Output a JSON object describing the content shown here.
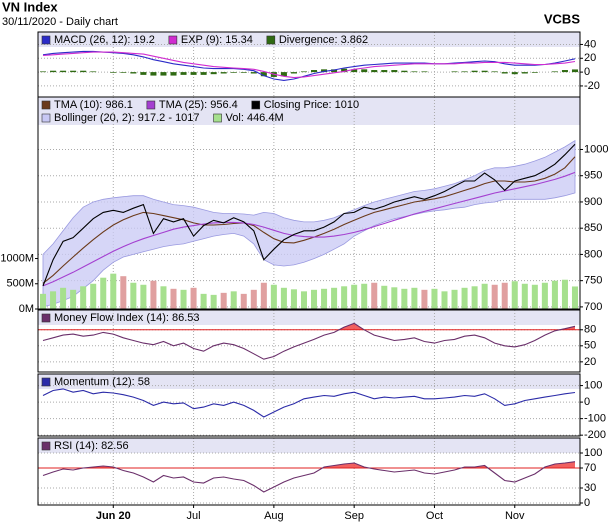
{
  "header": {
    "title": "VN Index",
    "subtitle": "30/11/2020 - Daily chart",
    "source": "VCBS"
  },
  "chart_data": [
    {
      "type": "line",
      "ylim": [
        -36,
        58
      ],
      "yticks": [
        40,
        20,
        0,
        -20
      ],
      "grid": true,
      "series": [
        {
          "name": "MACD (26, 12): 19.2",
          "type": "line",
          "color": "#2b2bc8",
          "values": [
            25,
            27,
            28,
            29,
            30,
            30,
            29,
            28,
            27,
            25,
            22,
            18,
            15,
            12,
            10,
            8,
            6,
            5,
            5,
            5,
            4,
            2,
            -5,
            -10,
            -12,
            -10,
            -6,
            -2,
            1,
            3,
            6,
            8,
            10,
            11,
            12,
            13,
            13,
            13,
            13,
            12,
            12,
            13,
            14,
            15,
            16,
            15,
            12,
            10,
            10,
            10,
            11,
            13,
            16,
            19.2
          ]
        },
        {
          "name": "EXP (9): 15.34",
          "type": "line",
          "color": "#d02cd0",
          "values": [
            24,
            25,
            26,
            27,
            28,
            29,
            29,
            29,
            28,
            27,
            26,
            23,
            20,
            17,
            14,
            12,
            10,
            8,
            7,
            6,
            5,
            4,
            1,
            -3,
            -6,
            -8,
            -7,
            -5,
            -3,
            -1,
            1,
            4,
            6,
            8,
            9,
            10,
            11,
            12,
            12,
            12,
            12,
            12,
            13,
            13,
            14,
            14,
            14,
            13,
            12,
            11,
            11,
            12,
            13,
            15.34
          ]
        },
        {
          "name": "Divergence: 3.862",
          "type": "bar",
          "color": "#2f6a12",
          "values": [
            1,
            2,
            2,
            2,
            2,
            1,
            0,
            -1,
            -1,
            -2,
            -4,
            -5,
            -5,
            -5,
            -4,
            -4,
            -4,
            -3,
            -2,
            -1,
            -1,
            -2,
            -6,
            -7,
            -6,
            -2,
            1,
            3,
            4,
            4,
            5,
            4,
            4,
            3,
            3,
            3,
            2,
            1,
            1,
            0,
            0,
            1,
            1,
            2,
            2,
            1,
            -2,
            -3,
            -2,
            -1,
            0,
            1,
            3,
            3.862
          ]
        }
      ]
    },
    {
      "type": "line",
      "ylim": [
        696,
        1100
      ],
      "yticks": [
        1000,
        950,
        900,
        850,
        800,
        750,
        700
      ],
      "grid": true,
      "y2lim": [
        0,
        4200
      ],
      "y2ticks": [
        {
          "value": 1000,
          "label": "1000M"
        },
        {
          "value": 500,
          "label": "500M"
        },
        {
          "value": 0,
          "label": "0M"
        }
      ],
      "series": [
        {
          "name": "TMA (10): 986.1",
          "type": "line",
          "color": "#6b3a1a",
          "values": [
            745,
            760,
            778,
            795,
            812,
            828,
            843,
            856,
            866,
            874,
            880,
            878,
            874,
            870,
            866,
            860,
            856,
            856,
            857,
            859,
            860,
            855,
            842,
            830,
            823,
            822,
            827,
            833,
            840,
            848,
            857,
            865,
            873,
            880,
            885,
            890,
            895,
            900,
            903,
            906,
            910,
            916,
            922,
            928,
            935,
            940,
            940,
            938,
            938,
            940,
            945,
            953,
            965,
            986.1
          ]
        },
        {
          "name": "TMA (25): 956.4",
          "type": "line",
          "color": "#a43fd0",
          "values": [
            740,
            748,
            757,
            766,
            776,
            786,
            796,
            806,
            815,
            823,
            830,
            836,
            842,
            848,
            852,
            855,
            858,
            860,
            861,
            861,
            860,
            857,
            852,
            846,
            840,
            836,
            834,
            833,
            833,
            835,
            838,
            842,
            847,
            853,
            859,
            865,
            871,
            877,
            882,
            887,
            892,
            897,
            902,
            907,
            912,
            917,
            921,
            925,
            929,
            933,
            938,
            943,
            949,
            956.4
          ]
        },
        {
          "name": "Closing Price: 1010",
          "type": "line",
          "color": "#000000",
          "values": [
            740,
            790,
            825,
            832,
            850,
            868,
            880,
            884,
            880,
            888,
            895,
            840,
            868,
            862,
            868,
            835,
            855,
            865,
            860,
            870,
            862,
            845,
            790,
            810,
            828,
            838,
            845,
            845,
            852,
            862,
            878,
            880,
            890,
            886,
            892,
            900,
            905,
            910,
            905,
            912,
            920,
            930,
            940,
            940,
            955,
            942,
            922,
            940,
            945,
            950,
            960,
            972,
            990,
            1010
          ]
        },
        {
          "name": "Bollinger (20, 2): 917.2 - 1017",
          "type": "band",
          "color": "#c8c8f4",
          "lower": [
            700,
            705,
            712,
            720,
            735,
            750,
            770,
            785,
            795,
            800,
            805,
            810,
            815,
            818,
            820,
            825,
            830,
            835,
            838,
            840,
            835,
            820,
            790,
            780,
            778,
            780,
            785,
            792,
            800,
            810,
            820,
            835,
            845,
            855,
            862,
            868,
            872,
            876,
            880,
            883,
            885,
            888,
            890,
            895,
            898,
            900,
            905,
            905,
            905,
            905,
            905,
            908,
            912,
            917.2
          ],
          "upper": [
            800,
            820,
            845,
            870,
            890,
            900,
            905,
            908,
            910,
            912,
            912,
            905,
            900,
            895,
            893,
            890,
            885,
            880,
            878,
            878,
            877,
            875,
            880,
            878,
            870,
            865,
            862,
            862,
            865,
            870,
            878,
            885,
            893,
            900,
            905,
            910,
            915,
            920,
            922,
            925,
            930,
            935,
            942,
            950,
            960,
            965,
            965,
            968,
            972,
            978,
            985,
            995,
            1005,
            1017
          ]
        },
        {
          "name": "Vol: 446.4M",
          "type": "bar",
          "axis": "y2",
          "color": "#a6e08e",
          "down_color": "#e0a0a0",
          "values": [
            300,
            350,
            420,
            380,
            450,
            500,
            620,
            700,
            650,
            520,
            480,
            560,
            450,
            400,
            380,
            420,
            300,
            280,
            320,
            350,
            300,
            380,
            520,
            480,
            420,
            390,
            350,
            380,
            400,
            420,
            450,
            480,
            500,
            520,
            460,
            430,
            400,
            420,
            380,
            400,
            350,
            380,
            420,
            450,
            500,
            480,
            520,
            550,
            500,
            480,
            520,
            560,
            580,
            446.4
          ]
        }
      ]
    },
    {
      "type": "line",
      "ylim": [
        1,
        117
      ],
      "yticks": [
        80,
        50,
        20
      ],
      "grid": true,
      "threshold": 80,
      "threshold_color": "#e02020",
      "series": [
        {
          "name": "Money Flow Index (14): 86.53",
          "type": "line",
          "color": "#6a2f6a",
          "values": [
            60,
            65,
            70,
            72,
            68,
            70,
            75,
            72,
            65,
            60,
            55,
            52,
            58,
            50,
            55,
            45,
            40,
            50,
            55,
            52,
            45,
            35,
            25,
            30,
            40,
            48,
            55,
            62,
            70,
            75,
            85,
            92,
            80,
            70,
            65,
            60,
            62,
            65,
            58,
            55,
            60,
            62,
            68,
            70,
            65,
            55,
            50,
            48,
            52,
            60,
            70,
            78,
            82,
            86.53
          ]
        }
      ]
    },
    {
      "type": "line",
      "ylim": [
        -205,
        170
      ],
      "yticks": [
        100,
        0,
        -100,
        -200
      ],
      "grid": true,
      "series": [
        {
          "name": "Momentum (12): 58",
          "type": "line",
          "color": "#2b2ba8",
          "values": [
            40,
            70,
            80,
            60,
            70,
            50,
            60,
            55,
            45,
            30,
            10,
            -20,
            0,
            -10,
            -5,
            -40,
            -30,
            -10,
            -20,
            0,
            -20,
            -50,
            -90,
            -60,
            -30,
            -10,
            20,
            30,
            40,
            35,
            50,
            60,
            40,
            20,
            30,
            25,
            30,
            35,
            20,
            20,
            25,
            30,
            40,
            35,
            50,
            20,
            -20,
            -10,
            10,
            20,
            30,
            40,
            50,
            58
          ]
        }
      ]
    },
    {
      "type": "line",
      "ylim": [
        -4,
        130
      ],
      "yticks": [
        100,
        70,
        30,
        0
      ],
      "grid": true,
      "threshold": 70,
      "threshold_color": "#e02020",
      "categories": [
        null,
        null,
        null,
        null,
        null,
        null,
        null,
        "Jun 20",
        null,
        null,
        null,
        null,
        null,
        null,
        null,
        "Jul",
        null,
        null,
        null,
        null,
        null,
        null,
        null,
        "Aug",
        null,
        null,
        null,
        null,
        null,
        null,
        null,
        "Sep",
        null,
        null,
        null,
        null,
        null,
        null,
        null,
        "Oct",
        null,
        null,
        null,
        null,
        null,
        null,
        null,
        "Nov",
        null,
        null,
        null,
        null,
        null,
        null
      ],
      "series": [
        {
          "name": "RSI (14): 82.56",
          "type": "line",
          "color": "#6a2f6a",
          "values": [
            55,
            62,
            68,
            66,
            70,
            72,
            74,
            72,
            65,
            60,
            52,
            42,
            55,
            50,
            52,
            42,
            40,
            50,
            52,
            48,
            45,
            35,
            22,
            32,
            42,
            50,
            55,
            60,
            72,
            75,
            78,
            80,
            72,
            68,
            65,
            62,
            64,
            66,
            60,
            58,
            62,
            66,
            72,
            72,
            75,
            60,
            45,
            42,
            50,
            58,
            72,
            78,
            80,
            82.56
          ]
        }
      ]
    }
  ]
}
